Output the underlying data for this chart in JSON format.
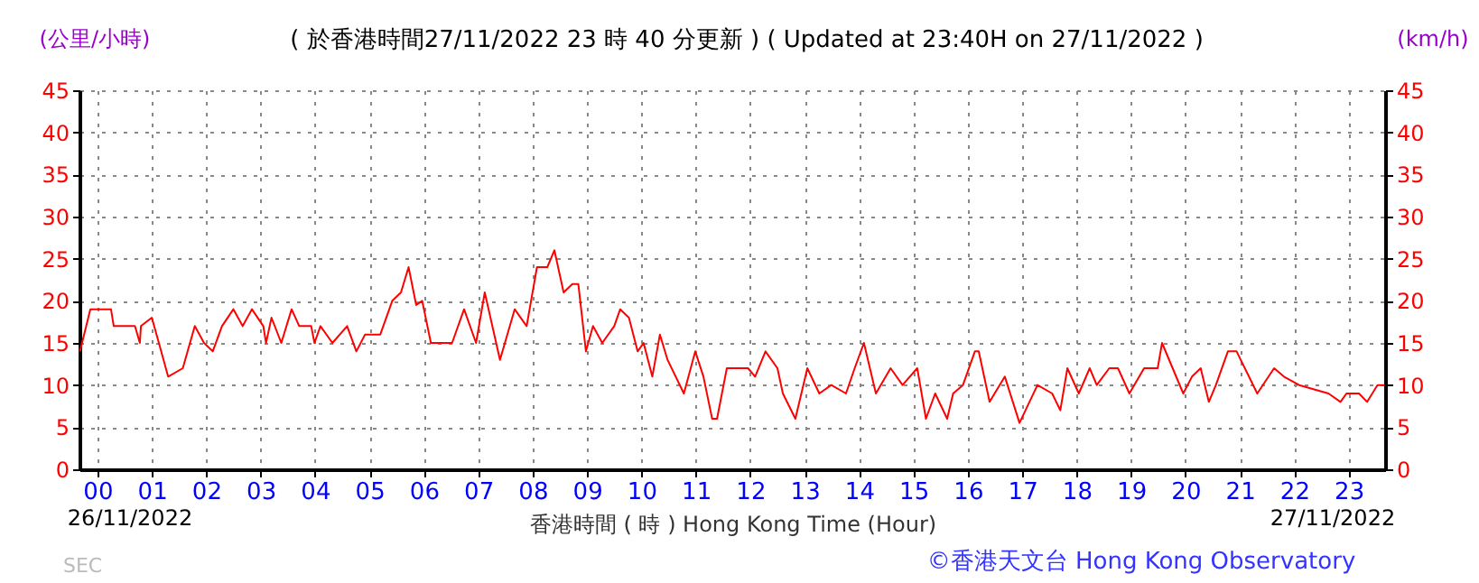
{
  "chart_data": {
    "type": "line",
    "title": "( 於香港時間27/11/2022 23 時 40 分更新 ) ( Updated at 23:40H on 27/11/2022 )",
    "xlabel": "香港時間 ( 時 )  Hong Kong Time (Hour)",
    "ylabel": "(公里/小時)",
    "y2label": "(km/h)",
    "annotations": [
      "26/11/2022",
      "27/11/2022",
      "©香港天文台 Hong Kong Observatory",
      "SEC"
    ],
    "series": [
      {
        "color": "#ff0000",
        "x": [
          -0.32,
          -0.13,
          0.25,
          0.3,
          0.69,
          0.78,
          0.8,
          1.0,
          1.13,
          1.3,
          1.57,
          1.79,
          1.96,
          2.12,
          2.29,
          2.5,
          2.67,
          2.84,
          3.05,
          3.1,
          3.2,
          3.38,
          3.57,
          3.71,
          3.93,
          3.99,
          4.1,
          4.32,
          4.59,
          4.76,
          4.92,
          5.2,
          5.42,
          5.58,
          5.72,
          5.86,
          5.97,
          6.13,
          6.52,
          6.74,
          6.96,
          7.12,
          7.4,
          7.67,
          7.89,
          8.08,
          8.27,
          8.4,
          8.57,
          8.73,
          8.84,
          8.98,
          9.11,
          9.28,
          9.5,
          9.61,
          9.77,
          9.93,
          10.04,
          10.2,
          10.34,
          10.48,
          10.78,
          10.99,
          11.14,
          11.3,
          11.39,
          11.57,
          11.96,
          12.09,
          12.28,
          12.5,
          12.6,
          12.83,
          13.05,
          13.27,
          13.49,
          13.76,
          13.92,
          14.09,
          14.31,
          14.58,
          14.8,
          15.07,
          15.23,
          15.4,
          15.62,
          15.73,
          15.91,
          16.13,
          16.2,
          16.4,
          16.68,
          16.95,
          17.28,
          17.55,
          17.7,
          17.83,
          18.04,
          18.24,
          18.37,
          18.6,
          18.76,
          18.97,
          19.24,
          19.49,
          19.57,
          19.96,
          20.12,
          20.28,
          20.43,
          20.56,
          20.78,
          20.94,
          21.32,
          21.63,
          21.81,
          22.09,
          22.63,
          22.85,
          22.96,
          23.19,
          23.34,
          23.53,
          23.66
        ],
        "values": [
          14,
          19,
          19,
          17,
          17,
          15,
          17,
          18,
          15,
          11,
          12,
          17,
          15,
          14,
          17,
          19,
          17,
          19,
          17,
          15,
          18,
          15,
          19,
          17,
          17,
          15,
          17,
          15,
          17,
          14,
          16,
          16,
          20,
          21,
          24,
          19.5,
          20,
          15,
          15,
          19,
          15,
          21,
          13,
          19,
          17,
          24,
          24,
          26,
          21,
          22,
          22,
          14,
          17,
          15,
          17,
          19,
          18,
          14,
          15,
          11,
          16,
          13,
          9,
          14,
          11,
          6,
          6,
          12,
          12,
          11,
          14,
          12,
          9,
          6,
          12,
          9,
          10,
          9,
          12,
          15,
          9,
          12,
          10,
          12,
          6,
          9,
          6,
          9,
          10,
          14,
          14,
          8,
          11,
          5.5,
          10,
          9,
          7,
          12,
          9,
          12,
          10,
          12,
          12,
          9,
          12,
          12,
          15,
          9,
          11,
          12,
          8,
          10,
          14,
          14,
          9,
          12,
          11,
          10,
          9,
          8,
          9,
          9,
          8,
          10,
          10
        ]
      }
    ],
    "xlim": [
      -0.33,
      23.67
    ],
    "xticks": [
      {
        "value": 0,
        "label": "00"
      },
      {
        "value": 1,
        "label": "01"
      },
      {
        "value": 2,
        "label": "02"
      },
      {
        "value": 3,
        "label": "03"
      },
      {
        "value": 4,
        "label": "04"
      },
      {
        "value": 5,
        "label": "05"
      },
      {
        "value": 6,
        "label": "06"
      },
      {
        "value": 7,
        "label": "07"
      },
      {
        "value": 8,
        "label": "08"
      },
      {
        "value": 9,
        "label": "09"
      },
      {
        "value": 10,
        "label": "10"
      },
      {
        "value": 11,
        "label": "11"
      },
      {
        "value": 12,
        "label": "12"
      },
      {
        "value": 13,
        "label": "13"
      },
      {
        "value": 14,
        "label": "14"
      },
      {
        "value": 15,
        "label": "15"
      },
      {
        "value": 16,
        "label": "16"
      },
      {
        "value": 17,
        "label": "17"
      },
      {
        "value": 18,
        "label": "18"
      },
      {
        "value": 19,
        "label": "19"
      },
      {
        "value": 20,
        "label": "20"
      },
      {
        "value": 21,
        "label": "21"
      },
      {
        "value": 22,
        "label": "22"
      },
      {
        "value": 23,
        "label": "23"
      }
    ],
    "ylim": [
      0,
      45
    ],
    "yticks": [
      0,
      5,
      10,
      15,
      20,
      25,
      30,
      35,
      40,
      45
    ],
    "y2lim": [
      0,
      45
    ],
    "y2ticks": [
      0,
      5,
      10,
      15,
      20,
      25,
      30,
      35,
      40,
      45
    ],
    "grid": true,
    "marker": "none",
    "line_style": "solid"
  }
}
